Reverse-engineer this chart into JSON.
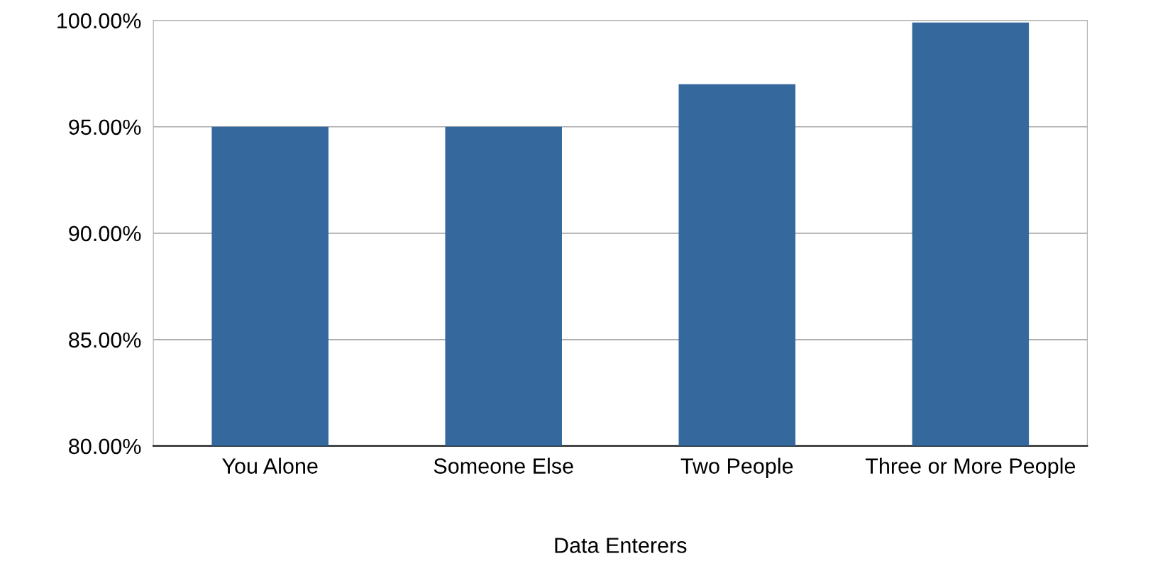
{
  "chart_data": {
    "type": "bar",
    "xlabel": "Data Enterers",
    "categories": [
      "You Alone",
      "Someone Else",
      "Two People",
      "Three or More People"
    ],
    "values": [
      95.0,
      95.0,
      97.0,
      99.9
    ],
    "color": "#35699e",
    "ylim": [
      80,
      100
    ],
    "yticks": [
      {
        "value": 80,
        "label": "80.00%"
      },
      {
        "value": 85,
        "label": "85.00%"
      },
      {
        "value": 90,
        "label": "90.00%"
      },
      {
        "value": 95,
        "label": "95.00%"
      },
      {
        "value": 100,
        "label": "100.00%"
      }
    ],
    "grid": "y"
  }
}
